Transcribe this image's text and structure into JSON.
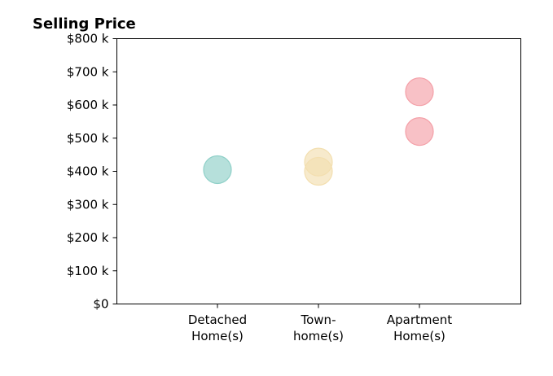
{
  "chart_data": {
    "type": "scatter",
    "title": "Selling Price",
    "xlabel": "",
    "ylabel": "",
    "categories": [
      [
        "Detached",
        "Home(s)"
      ],
      [
        "Town-",
        "home(s)"
      ],
      [
        "Apartment",
        "Home(s)"
      ]
    ],
    "ylim": [
      0,
      800
    ],
    "yticks": [
      0,
      100,
      200,
      300,
      400,
      500,
      600,
      700,
      800
    ],
    "ytick_labels": [
      "$0",
      "$100 k",
      "$200 k",
      "$300 k",
      "$400 k",
      "$500 k",
      "$600 k",
      "$700 k",
      "$800 k"
    ],
    "y_unit": "thousand dollars",
    "grid": false,
    "series": [
      {
        "category_index": 0,
        "color": "#8fd0c8",
        "values": [
          405
        ]
      },
      {
        "category_index": 1,
        "color": "#f3dfb0",
        "values": [
          428,
          400
        ]
      },
      {
        "category_index": 2,
        "color": "#f4a0a8",
        "values": [
          640,
          520
        ]
      }
    ]
  }
}
